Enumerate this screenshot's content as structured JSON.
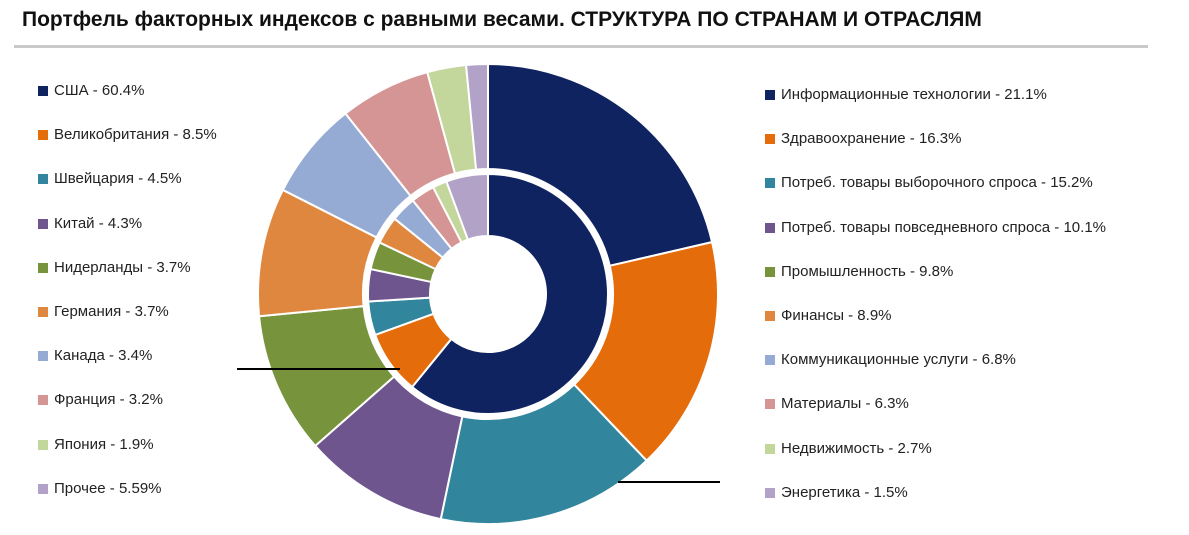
{
  "title": "Портфель факторных индексов с равными весами. СТРУКТУРА ПО СТРАНАМ И ОТРАСЛЯМ",
  "chart_data": {
    "type": "donut",
    "inner_ring": {
      "series": [
        {
          "label": "США - 60.4%",
          "value": 60.4,
          "color": "#0f2360"
        },
        {
          "label": "Великобритания - 8.5%",
          "value": 8.5,
          "color": "#e46c0a"
        },
        {
          "label": "Швейцария - 4.5%",
          "value": 4.5,
          "color": "#31859c"
        },
        {
          "label": "Китай - 4.3%",
          "value": 4.3,
          "color": "#6e558e"
        },
        {
          "label": "Нидерланды - 3.7%",
          "value": 3.7,
          "color": "#77933c"
        },
        {
          "label": "Германия - 3.7%",
          "value": 3.7,
          "color": "#e0873f"
        },
        {
          "label": "Канада - 3.4%",
          "value": 3.4,
          "color": "#95abd4"
        },
        {
          "label": "Франция - 3.2%",
          "value": 3.2,
          "color": "#d69595"
        },
        {
          "label": "Япония - 1.9%",
          "value": 1.9,
          "color": "#c3d69b"
        },
        {
          "label": "Прочее - 5.59%",
          "value": 5.59,
          "color": "#b3a2c7"
        }
      ]
    },
    "outer_ring": {
      "series": [
        {
          "label": "Информационные технологии - 21.1%",
          "value": 21.1,
          "color": "#0f2360"
        },
        {
          "label": "Здравоохранение - 16.3%",
          "value": 16.3,
          "color": "#e46c0a"
        },
        {
          "label": "Потреб. товары выборочного спроса - 15.2%",
          "value": 15.2,
          "color": "#31859c"
        },
        {
          "label": "Потреб. товары повседневного спроса - 10.1%",
          "value": 10.1,
          "color": "#6e558e"
        },
        {
          "label": "Промышленность - 9.8%",
          "value": 9.8,
          "color": "#77933c"
        },
        {
          "label": "Финансы - 8.9%",
          "value": 8.9,
          "color": "#e0873f"
        },
        {
          "label": "Коммуникационные услуги - 6.8%",
          "value": 6.8,
          "color": "#95abd4"
        },
        {
          "label": "Материалы - 6.3%",
          "value": 6.3,
          "color": "#d69595"
        },
        {
          "label": "Недвижимость - 2.7%",
          "value": 2.7,
          "color": "#c3d69b"
        },
        {
          "label": "Энергетика - 1.5%",
          "value": 1.5,
          "color": "#b3a2c7"
        }
      ]
    },
    "legend_placement": "left for inner ring, right for outer ring"
  }
}
